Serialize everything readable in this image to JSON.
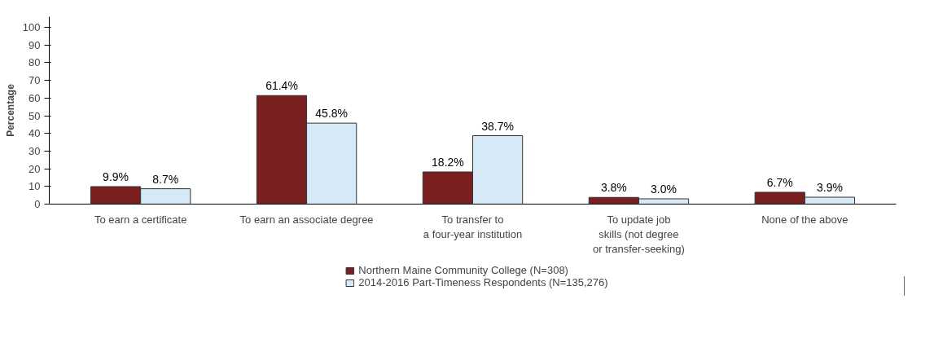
{
  "chart_data": {
    "type": "bar",
    "ylabel": "Percentage",
    "categories": [
      "To earn a certificate",
      "To earn an associate degree",
      "To transfer to\na four-year institution",
      "To update job\nskills (not degree\nor transfer-seeking)",
      "None of the above"
    ],
    "series": [
      {
        "name": "Northern Maine Community College (N=308)",
        "color": "#7a1f1f",
        "values": [
          9.9,
          61.4,
          18.2,
          3.8,
          6.7
        ],
        "value_labels": [
          "9.9%",
          "61.4%",
          "18.2%",
          "3.8%",
          "6.7%"
        ]
      },
      {
        "name": "2014-2016 Part-Timeness Respondents (N=135,276)",
        "color": "#d5e9f7",
        "values": [
          8.7,
          45.8,
          38.7,
          3.0,
          3.9
        ],
        "value_labels": [
          "8.7%",
          "45.8%",
          "38.7%",
          "3.0%",
          "3.9%"
        ]
      }
    ],
    "ylim": [
      0,
      106
    ],
    "yticks": [
      0,
      10,
      20,
      30,
      40,
      50,
      60,
      70,
      80,
      90,
      100
    ],
    "grid": false,
    "legend": "bottom"
  }
}
